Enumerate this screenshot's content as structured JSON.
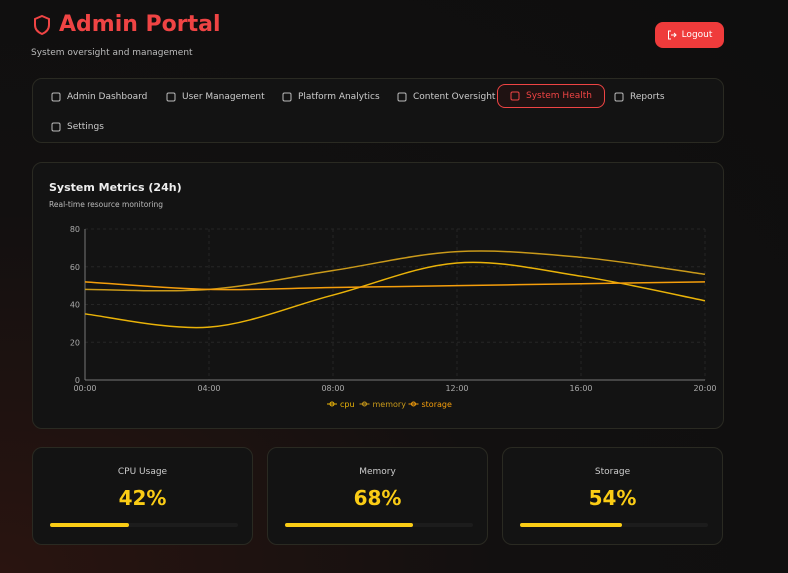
{
  "header": {
    "title": "Admin Portal",
    "subtitle": "System oversight and management",
    "logout": "Logout"
  },
  "nav": [
    {
      "label": "Admin Dashboard",
      "active": false
    },
    {
      "label": "User Management",
      "active": false
    },
    {
      "label": "Platform Analytics",
      "active": false
    },
    {
      "label": "Content Oversight",
      "active": false
    },
    {
      "label": "System Health",
      "active": true
    },
    {
      "label": "Reports",
      "active": false
    },
    {
      "label": "Settings",
      "active": false
    }
  ],
  "chart_data": {
    "type": "line",
    "title": "System Metrics (24h)",
    "subtitle": "Real-time resource monitoring",
    "categories": [
      "00:00",
      "04:00",
      "08:00",
      "12:00",
      "16:00",
      "20:00"
    ],
    "series": [
      {
        "name": "cpu",
        "color": "#eab308",
        "values": [
          35,
          28,
          45,
          62,
          55,
          42
        ]
      },
      {
        "name": "memory",
        "color": "#ca9a1a",
        "values": [
          48,
          48,
          58,
          68,
          65,
          56
        ]
      },
      {
        "name": "storage",
        "color": "#f59e0b",
        "values": [
          52,
          48,
          49,
          50,
          51,
          52
        ]
      }
    ],
    "ylim": [
      0,
      80
    ],
    "yticks": [
      0,
      20,
      40,
      60,
      80
    ],
    "grid": true
  },
  "cards": [
    {
      "label": "CPU Usage",
      "value": 42,
      "value_label": "42%"
    },
    {
      "label": "Memory",
      "value": 68,
      "value_label": "68%"
    },
    {
      "label": "Storage",
      "value": 54,
      "value_label": "54%"
    }
  ]
}
